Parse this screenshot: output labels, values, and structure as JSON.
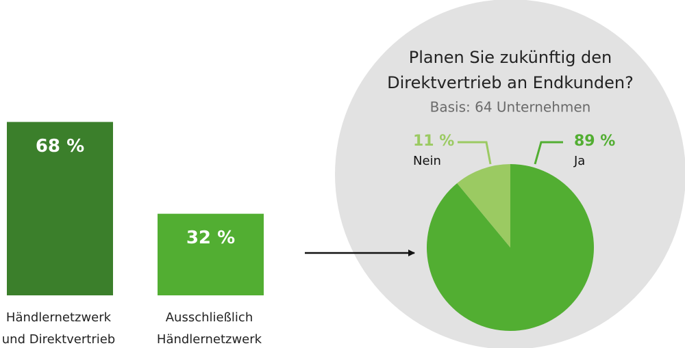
{
  "chart_data": [
    {
      "type": "bar",
      "categories": [
        [
          "Händlernetzwerk",
          "und Direktvertrieb"
        ],
        [
          "Ausschließlich",
          "Händlernetzwerk"
        ]
      ],
      "values": [
        68,
        32
      ],
      "value_labels": [
        "68 %",
        "32 %"
      ],
      "colors": [
        "#3b7f2b",
        "#52ae32"
      ]
    },
    {
      "type": "pie",
      "title": [
        "Planen Sie zukünftig den",
        "Direktvertrieb an Endkunden?"
      ],
      "subtitle": "Basis: 64 Unternehmen",
      "categories": [
        "Ja",
        "Nein"
      ],
      "values": [
        89,
        11
      ],
      "value_labels": [
        "89 %",
        "11 %"
      ],
      "colors": [
        "#52ae32",
        "#9bca62"
      ]
    }
  ]
}
